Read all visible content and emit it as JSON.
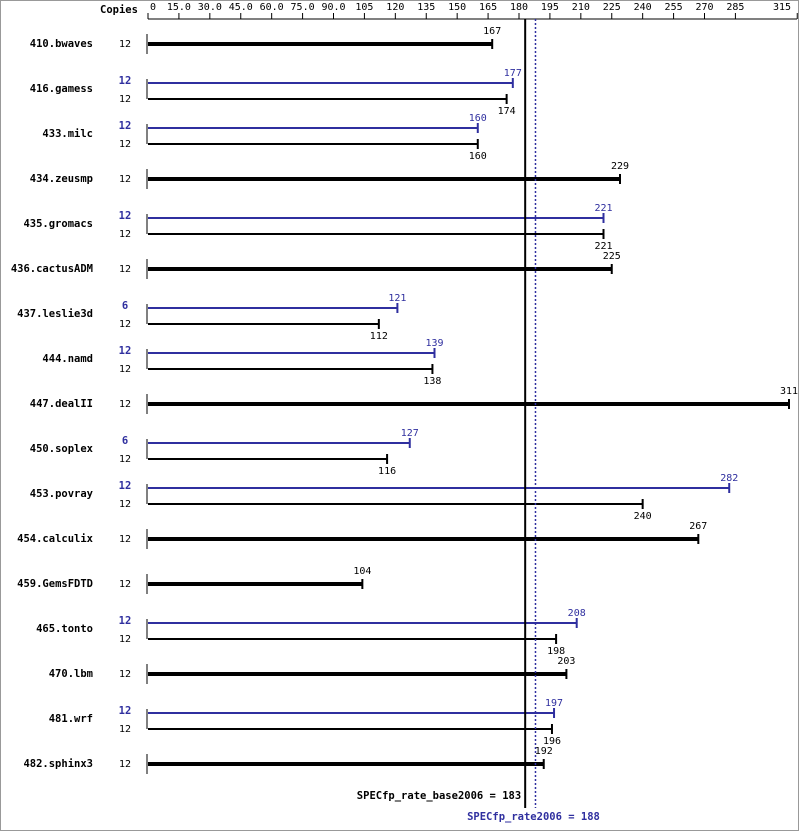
{
  "chart_data": {
    "type": "bar",
    "copies_header": "Copies",
    "categories": [
      "410.bwaves",
      "416.gamess",
      "433.milc",
      "434.zeusmp",
      "435.gromacs",
      "436.cactusADM",
      "437.leslie3d",
      "444.namd",
      "447.dealII",
      "450.soplex",
      "453.povray",
      "454.calculix",
      "459.GemsFDTD",
      "465.tonto",
      "470.lbm",
      "481.wrf",
      "482.sphinx3"
    ],
    "series": [
      {
        "color": "#000000",
        "copies": [
          12,
          12,
          12,
          12,
          12,
          12,
          12,
          12,
          12,
          12,
          12,
          12,
          12,
          12,
          12,
          12,
          12
        ],
        "values": [
          167,
          174,
          160,
          229,
          221,
          225,
          112,
          138,
          311,
          116,
          240,
          267,
          104,
          198,
          203,
          196,
          192
        ]
      },
      {
        "color": "#2f2f9f",
        "copies": [
          null,
          12,
          12,
          null,
          12,
          null,
          6,
          12,
          null,
          6,
          12,
          null,
          null,
          12,
          null,
          12,
          null
        ],
        "values": [
          null,
          177,
          160,
          null,
          221,
          null,
          121,
          139,
          null,
          127,
          282,
          null,
          null,
          208,
          null,
          197,
          null
        ]
      }
    ],
    "xlim": [
      0,
      311
    ],
    "xticks": [
      0,
      {
        "value": 15,
        "label": "15.0"
      },
      {
        "value": 30,
        "label": "30.0"
      },
      {
        "value": 45,
        "label": "45.0"
      },
      {
        "value": 60,
        "label": "60.0"
      },
      {
        "value": 75,
        "label": "75.0"
      },
      {
        "value": 90,
        "label": "90.0"
      },
      105,
      120,
      135,
      150,
      165,
      180,
      195,
      210,
      225,
      240,
      255,
      270,
      285,
      315
    ],
    "reference_lines": [
      {
        "label": "SPECfp_rate_base2006 = 183",
        "value": 183,
        "color": "#000000",
        "dashed": false
      },
      {
        "label": "SPECfp_rate2006 = 188",
        "value": 188,
        "color": "#2f2f9f",
        "dashed": true
      }
    ]
  }
}
